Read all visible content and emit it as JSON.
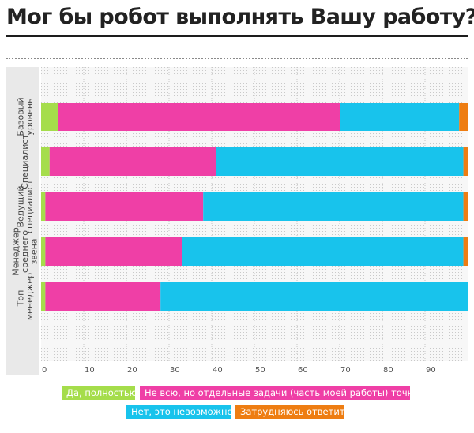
{
  "title": "Мог бы робот выполнять Вашу работу?",
  "chart_data": {
    "type": "bar",
    "orientation": "horizontal",
    "stacked": true,
    "categories": [
      [
        "Базовый",
        "уровень"
      ],
      [
        "Специалист"
      ],
      [
        "Ведущий",
        "специалист"
      ],
      [
        "Менеджер",
        "среднего",
        "звена"
      ],
      [
        "Топ-",
        "менеджер"
      ]
    ],
    "series": [
      {
        "name": "Да, полностью",
        "color": "#a5dd4b",
        "values": [
          4,
          2,
          1,
          1,
          1
        ]
      },
      {
        "name": "Не всю, но отдельные задачи (часть моей работы) точно",
        "color": "#ef3fa6",
        "values": [
          66,
          39,
          37,
          32,
          27
        ]
      },
      {
        "name": "Нет, это невозможно",
        "color": "#18c3ec",
        "values": [
          28,
          58,
          61,
          66,
          72
        ]
      },
      {
        "name": "Затрудняюсь ответить",
        "color": "#ee7d12",
        "values": [
          2,
          1,
          1,
          1,
          0
        ]
      }
    ],
    "xlim": [
      0,
      100
    ],
    "xticks": [
      0,
      10,
      20,
      30,
      40,
      50,
      60,
      70,
      80,
      90
    ],
    "grid": true,
    "legend_position": "bottom"
  }
}
